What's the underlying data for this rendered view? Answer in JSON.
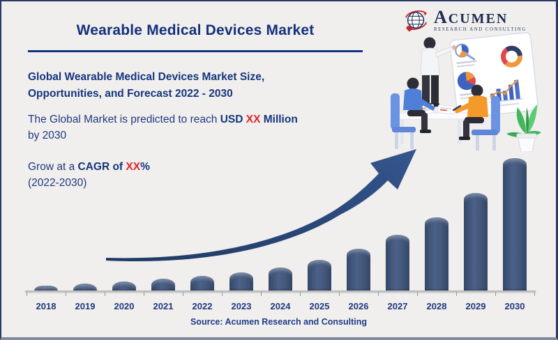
{
  "header": {
    "title": "Wearable Medical Devices Market"
  },
  "subtitle": {
    "line1": "Global Wearable Medical Devices Market Size,",
    "line2": "Opportunities, and Forecast 2022 - 2030"
  },
  "prediction": {
    "prefix": "The Global Market is predicted to reach ",
    "bold1": "USD ",
    "highlight": "XX",
    "bold2": " Million",
    "line2": "by 2030"
  },
  "cagr": {
    "prefix": "Grow at a ",
    "bold1": "CAGR of ",
    "highlight": "XX",
    "bold2": "%",
    "line2": "(2022-2030)"
  },
  "logo": {
    "icon": "globe-icon",
    "name_initial": "A",
    "name_rest": "CUMEN",
    "tagline": "RESEARCH AND CONSULTING"
  },
  "source": {
    "text": "Source: Acumen Research and Consulting"
  },
  "icons": {
    "logo_globe": "globe-icon",
    "growth_arrow": "curved-growth-arrow",
    "team_illustration": "team-meeting-presentation-illustration"
  },
  "colors": {
    "background": "#f0efed",
    "navy_title": "#15317d",
    "navy_text": "#20387f",
    "red_highlight": "#e1232b",
    "bar_fill": "#42597c",
    "arrow_fill": "#2c4a7d",
    "axis": "#bcbcbc"
  },
  "chart_data": {
    "type": "bar",
    "title": "",
    "xlabel": "",
    "ylabel": "",
    "categories": [
      "2018",
      "2019",
      "2020",
      "2021",
      "2022",
      "2023",
      "2024",
      "2025",
      "2026",
      "2027",
      "2028",
      "2029",
      "2030"
    ],
    "values": [
      7,
      10,
      13,
      17,
      21,
      26,
      33,
      44,
      60,
      80,
      105,
      140,
      190
    ],
    "values_note": "relative bar heights in px; actual market values are undisclosed (shown as XX in the infographic)",
    "ylim": [
      0,
      200
    ],
    "grid": false,
    "legend": null,
    "annotations": [
      "curved growth arrow from 2019 to 2028 indicating exponential growth"
    ]
  }
}
